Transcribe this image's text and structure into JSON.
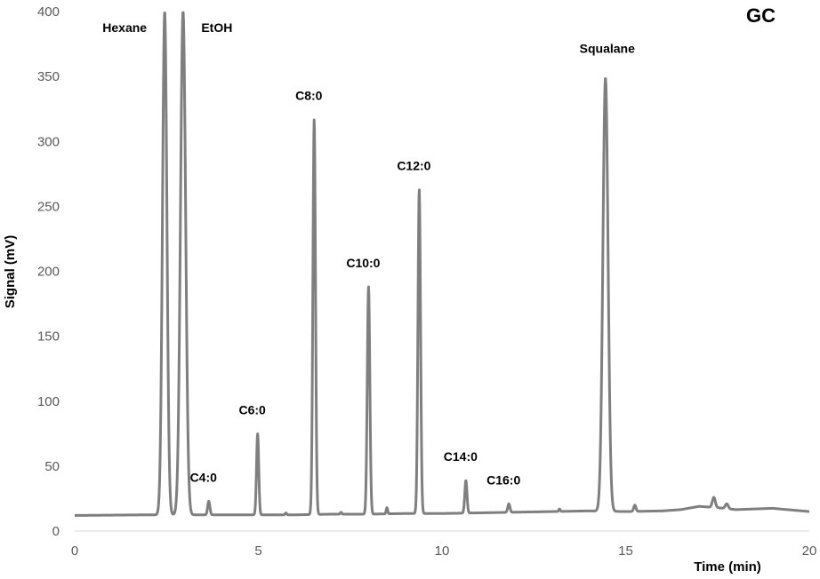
{
  "chart_data": {
    "type": "line",
    "title": "GC",
    "xlabel": "Time (min)",
    "ylabel": "Signal (mV)",
    "xlim": [
      0,
      20
    ],
    "ylim": [
      0,
      400
    ],
    "x_ticks": [
      0,
      5,
      10,
      15,
      20
    ],
    "y_ticks": [
      0,
      50,
      100,
      150,
      200,
      250,
      300,
      350,
      400
    ],
    "grid": false,
    "legend": "none",
    "line_color": "#7f7f7f",
    "baseline": [
      [
        0,
        12
      ],
      [
        2,
        12.5
      ],
      [
        3.2,
        12.5
      ],
      [
        5,
        12.5
      ],
      [
        6,
        12.5
      ],
      [
        7,
        13
      ],
      [
        8,
        13
      ],
      [
        9,
        13.5
      ],
      [
        10,
        13.5
      ],
      [
        11,
        14
      ],
      [
        12,
        14.5
      ],
      [
        13,
        15
      ],
      [
        14,
        15.5
      ],
      [
        15,
        15
      ],
      [
        16,
        15.5
      ],
      [
        16.5,
        16.5
      ],
      [
        17,
        19
      ],
      [
        17.5,
        18
      ],
      [
        18,
        16.5
      ],
      [
        19,
        17.5
      ],
      [
        20,
        15
      ]
    ],
    "peaks": [
      {
        "label": "Hexane",
        "x": 2.45,
        "height": 400,
        "width": 0.06
      },
      {
        "label": "EtOH",
        "x": 2.95,
        "height": 400,
        "width": 0.07
      },
      {
        "label": "C4:0",
        "x": 3.65,
        "height": 23,
        "width": 0.03
      },
      {
        "label": "C6:0",
        "x": 4.98,
        "height": 75,
        "width": 0.03
      },
      {
        "label": "C8:0",
        "x": 6.52,
        "height": 317,
        "width": 0.035
      },
      {
        "label": "C10:0",
        "x": 8.0,
        "height": 188,
        "width": 0.035
      },
      {
        "label": "C12:0",
        "x": 9.38,
        "height": 263,
        "width": 0.035
      },
      {
        "label": "C14:0",
        "x": 10.65,
        "height": 39,
        "width": 0.03
      },
      {
        "label": "C16:0",
        "x": 11.82,
        "height": 21,
        "width": 0.03
      },
      {
        "label": "Squalane",
        "x": 14.45,
        "height": 349,
        "width": 0.07
      }
    ],
    "minor_peaks": [
      {
        "x": 5.75,
        "height": 14,
        "width": 0.02
      },
      {
        "x": 7.25,
        "height": 14.5,
        "width": 0.02
      },
      {
        "x": 8.5,
        "height": 18,
        "width": 0.02
      },
      {
        "x": 13.2,
        "height": 17,
        "width": 0.02
      },
      {
        "x": 15.25,
        "height": 20,
        "width": 0.03
      },
      {
        "x": 17.4,
        "height": 26,
        "width": 0.04
      },
      {
        "x": 17.75,
        "height": 21,
        "width": 0.04
      }
    ]
  }
}
